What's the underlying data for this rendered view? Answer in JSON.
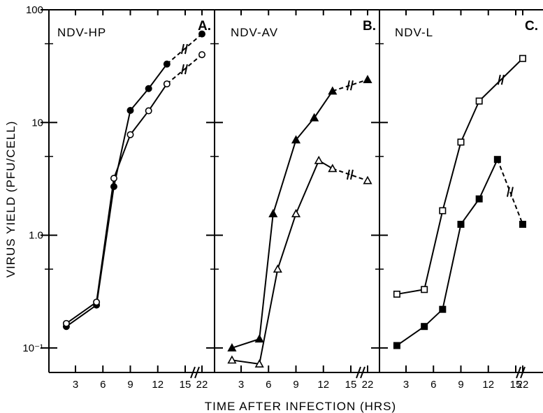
{
  "chart_data": [
    {
      "type": "line",
      "panel_label": "A.",
      "title": "NDV-HP",
      "xlabel": "TIME AFTER INFECTION (HRS)",
      "ylabel": "VIRUS YIELD (PFU/CELL)",
      "yscale": "log",
      "ylim": [
        0.06,
        100
      ],
      "x_ticks": [
        "3",
        "6",
        "9",
        "12",
        "15",
        "22"
      ],
      "y_ticks": [
        "100",
        "10",
        "1.0",
        "10⁻¹"
      ],
      "series": [
        {
          "marker": "filled-circle",
          "color": "#000000",
          "x": [
            2,
            5.3,
            7.2,
            9,
            11,
            13,
            22
          ],
          "y": [
            0.155,
            0.24,
            2.7,
            12.8,
            20,
            33,
            61
          ],
          "dashed_from_index": 5
        },
        {
          "marker": "open-circle",
          "color": "#000000",
          "x": [
            2,
            5.3,
            7.2,
            9,
            11,
            13,
            22
          ],
          "y": [
            0.165,
            0.255,
            3.2,
            7.8,
            12.7,
            22,
            40
          ],
          "dashed_from_index": 5
        }
      ]
    },
    {
      "type": "line",
      "panel_label": "B.",
      "title": "NDV-AV",
      "xlabel": "TIME AFTER INFECTION (HRS)",
      "yscale": "log",
      "ylim": [
        0.06,
        100
      ],
      "x_ticks": [
        "3",
        "6",
        "9",
        "12",
        "15",
        "22"
      ],
      "series": [
        {
          "marker": "filled-triangle",
          "color": "#000000",
          "x": [
            2,
            5,
            6.5,
            9,
            11,
            13,
            22
          ],
          "y": [
            0.1,
            0.12,
            1.55,
            7,
            11,
            19,
            24
          ],
          "dashed_from_index": 5
        },
        {
          "marker": "open-triangle",
          "color": "#000000",
          "x": [
            2,
            5,
            7,
            9,
            11.5,
            13,
            22
          ],
          "y": [
            0.078,
            0.072,
            0.5,
            1.55,
            4.6,
            3.9,
            3.05
          ],
          "dashed_from_index": 5
        }
      ]
    },
    {
      "type": "line",
      "panel_label": "C.",
      "title": "NDV-L",
      "xlabel": "TIME AFTER INFECTION (HRS)",
      "yscale": "log",
      "ylim": [
        0.06,
        100
      ],
      "x_ticks": [
        "3",
        "6",
        "9",
        "12",
        "15",
        "22"
      ],
      "series": [
        {
          "marker": "open-square",
          "color": "#000000",
          "x": [
            2,
            5,
            7,
            9,
            11,
            22
          ],
          "y": [
            0.3,
            0.33,
            1.65,
            6.7,
            15.5,
            37
          ],
          "dashed_from_index": null
        },
        {
          "marker": "filled-square",
          "color": "#000000",
          "x": [
            2,
            5,
            7,
            9,
            11,
            13,
            22
          ],
          "y": [
            0.105,
            0.155,
            0.22,
            1.25,
            2.1,
            4.7,
            1.25
          ],
          "dashed_from_index": 5
        }
      ]
    }
  ]
}
